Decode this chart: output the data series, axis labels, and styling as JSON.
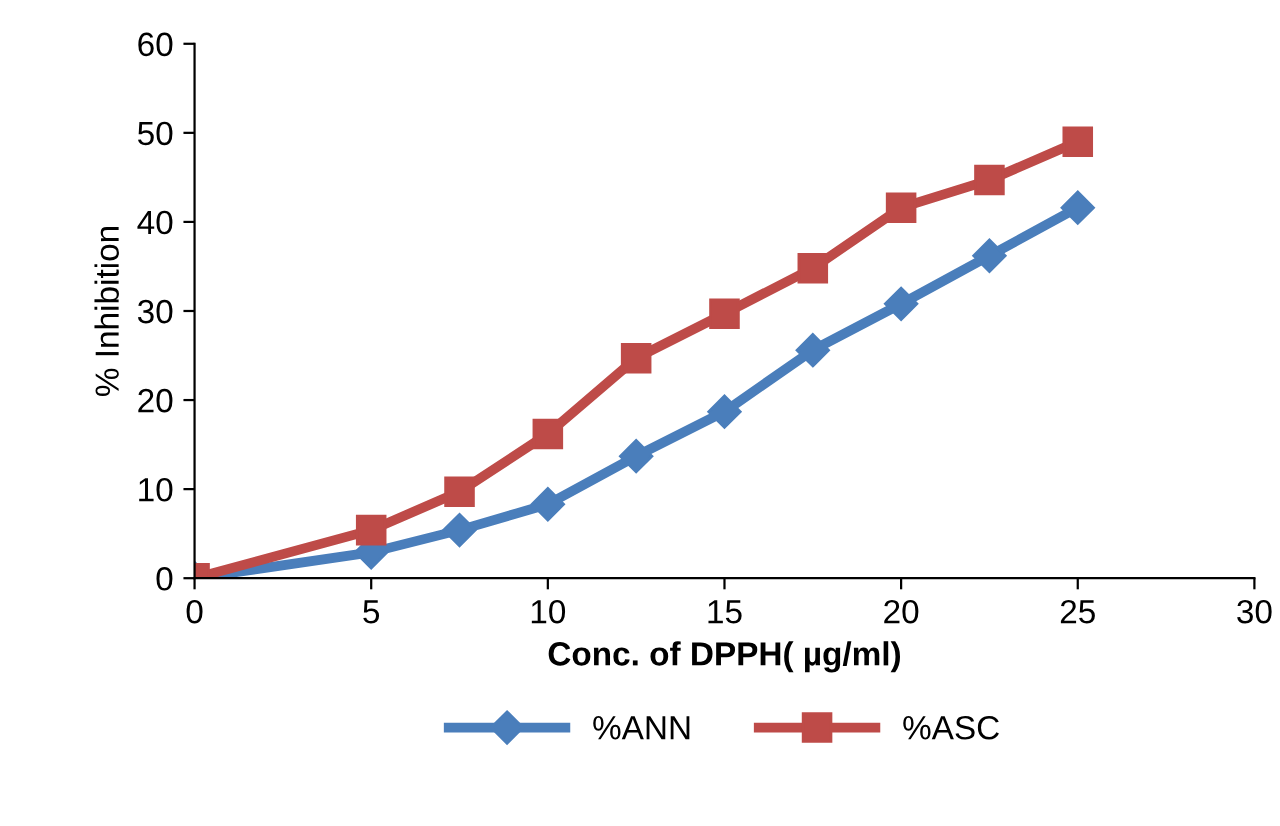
{
  "chart_data": {
    "type": "line",
    "xlabel": "Conc. of DPPH( µg/ml)",
    "ylabel": "% Inhibition",
    "x": [
      0,
      5,
      7.5,
      10,
      12.5,
      15,
      17.5,
      20,
      22.5,
      25
    ],
    "series": [
      {
        "name": "%ANN",
        "color": "#4a7ebb",
        "marker": "diamond",
        "values": [
          0,
          2.9,
          5.4,
          8.3,
          13.7,
          18.7,
          25.6,
          30.8,
          36.2,
          41.6
        ]
      },
      {
        "name": "%ASC",
        "color": "#be4b48",
        "marker": "square",
        "values": [
          0,
          5.4,
          9.7,
          16.2,
          24.7,
          29.7,
          34.8,
          41.6,
          44.7,
          49.0
        ]
      }
    ],
    "xlim": [
      0,
      30
    ],
    "xticks": [
      0,
      5,
      10,
      15,
      20,
      25,
      30
    ],
    "ylim": [
      0,
      60
    ],
    "yticks": [
      0,
      10,
      20,
      30,
      40,
      50,
      60
    ],
    "grid": false,
    "legend": "bottom",
    "line_style": "solid"
  }
}
